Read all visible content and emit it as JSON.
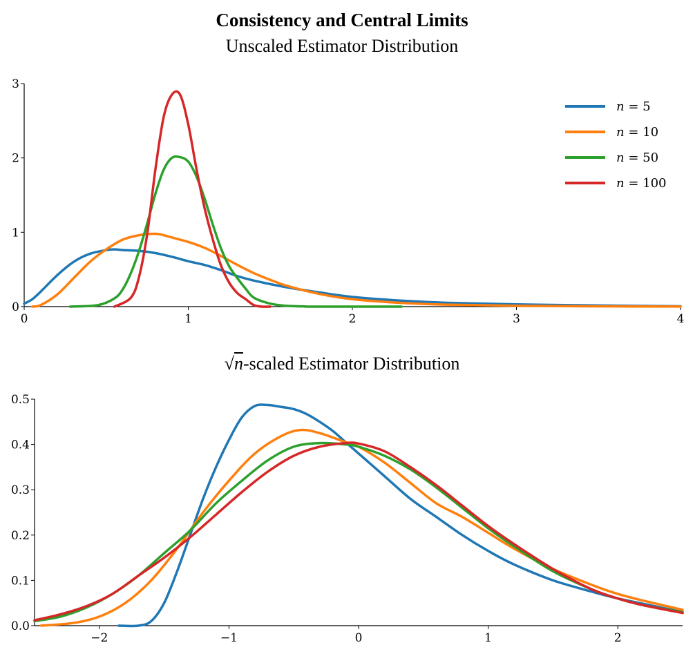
{
  "title": "Consistency and Central Limits",
  "colors": {
    "n5": "#1f77b4",
    "n10": "#ff7f0e",
    "n50": "#2ca02c",
    "n100": "#d62728"
  },
  "chart_data": [
    {
      "type": "line",
      "title": "Unscaled Estimator Distribution",
      "xlim": [
        0,
        4
      ],
      "ylim": [
        0,
        3
      ],
      "xticks": [
        0,
        1,
        2,
        3,
        4
      ],
      "yticks": [
        0,
        1,
        2,
        3
      ],
      "grid": false,
      "legend": "top-right",
      "series": [
        {
          "name": "n = 5",
          "color": "#1f77b4",
          "x": [
            0,
            0.05,
            0.1,
            0.2,
            0.3,
            0.4,
            0.5,
            0.55,
            0.6,
            0.7,
            0.8,
            0.9,
            1.0,
            1.1,
            1.2,
            1.3,
            1.4,
            1.6,
            1.8,
            2.0,
            2.3,
            2.6,
            3.0,
            3.5,
            4.0
          ],
          "y": [
            0.04,
            0.1,
            0.2,
            0.42,
            0.6,
            0.71,
            0.76,
            0.77,
            0.76,
            0.75,
            0.72,
            0.67,
            0.61,
            0.56,
            0.49,
            0.41,
            0.35,
            0.26,
            0.19,
            0.13,
            0.08,
            0.05,
            0.03,
            0.015,
            0.005
          ]
        },
        {
          "name": "n = 10",
          "color": "#ff7f0e",
          "x": [
            0.05,
            0.1,
            0.2,
            0.3,
            0.4,
            0.5,
            0.6,
            0.7,
            0.8,
            0.85,
            0.9,
            1.0,
            1.1,
            1.2,
            1.3,
            1.4,
            1.5,
            1.6,
            1.8,
            2.0,
            2.3,
            2.6,
            3.0,
            3.5,
            4.0
          ],
          "y": [
            0.0,
            0.02,
            0.16,
            0.38,
            0.6,
            0.77,
            0.9,
            0.96,
            0.98,
            0.96,
            0.93,
            0.87,
            0.79,
            0.68,
            0.56,
            0.45,
            0.36,
            0.28,
            0.17,
            0.1,
            0.05,
            0.025,
            0.012,
            0.004,
            0.001
          ]
        },
        {
          "name": "n = 50",
          "color": "#2ca02c",
          "x": [
            0.28,
            0.45,
            0.55,
            0.6,
            0.65,
            0.7,
            0.75,
            0.8,
            0.85,
            0.9,
            0.95,
            1.0,
            1.05,
            1.1,
            1.15,
            1.2,
            1.25,
            1.3,
            1.35,
            1.4,
            1.5,
            1.6,
            1.7,
            1.8,
            2.3
          ],
          "y": [
            0.0,
            0.02,
            0.11,
            0.23,
            0.45,
            0.75,
            1.12,
            1.52,
            1.84,
            2.0,
            2.01,
            1.95,
            1.75,
            1.45,
            1.1,
            0.78,
            0.54,
            0.38,
            0.24,
            0.12,
            0.04,
            0.01,
            0.003,
            0.0,
            0.0
          ]
        },
        {
          "name": "n = 100",
          "color": "#d62728",
          "x": [
            0.55,
            0.65,
            0.7,
            0.75,
            0.8,
            0.85,
            0.9,
            0.95,
            1.0,
            1.05,
            1.1,
            1.15,
            1.2,
            1.25,
            1.3,
            1.35,
            1.4,
            1.45,
            1.5
          ],
          "y": [
            0.0,
            0.12,
            0.4,
            0.98,
            1.85,
            2.55,
            2.85,
            2.85,
            2.45,
            1.85,
            1.32,
            0.9,
            0.55,
            0.32,
            0.18,
            0.1,
            0.02,
            0.0,
            0.0
          ]
        }
      ]
    },
    {
      "type": "line",
      "title_prefix": "n",
      "title": "-scaled Estimator Distribution",
      "xlim": [
        -2.5,
        2.5
      ],
      "ylim": [
        0,
        0.5
      ],
      "xticks": [
        -2,
        -1,
        0,
        1,
        2
      ],
      "xtick_labels": [
        "−2",
        "−1",
        "0",
        "1",
        "2"
      ],
      "yticks": [
        0,
        0.1,
        0.2,
        0.3,
        0.4,
        0.5
      ],
      "ytick_labels": [
        "0.0",
        "0.1",
        "0.2",
        "0.3",
        "0.4",
        "0.5"
      ],
      "grid": false,
      "legend": "none",
      "series": [
        {
          "name": "n = 5",
          "color": "#1f77b4",
          "x": [
            -1.85,
            -1.7,
            -1.6,
            -1.5,
            -1.4,
            -1.3,
            -1.2,
            -1.1,
            -1.0,
            -0.9,
            -0.8,
            -0.7,
            -0.6,
            -0.5,
            -0.4,
            -0.3,
            -0.2,
            -0.1,
            0.0,
            0.2,
            0.4,
            0.6,
            0.8,
            1.0,
            1.2,
            1.5,
            1.8,
            2.0,
            2.2,
            2.5
          ],
          "y": [
            0.0,
            0.0,
            0.01,
            0.05,
            0.12,
            0.2,
            0.28,
            0.35,
            0.41,
            0.46,
            0.485,
            0.487,
            0.483,
            0.478,
            0.467,
            0.45,
            0.43,
            0.405,
            0.38,
            0.33,
            0.28,
            0.24,
            0.2,
            0.165,
            0.135,
            0.1,
            0.075,
            0.06,
            0.048,
            0.03
          ]
        },
        {
          "name": "n = 10",
          "color": "#ff7f0e",
          "x": [
            -2.45,
            -2.2,
            -2.0,
            -1.8,
            -1.6,
            -1.4,
            -1.2,
            -1.0,
            -0.8,
            -0.6,
            -0.45,
            -0.3,
            -0.1,
            0.0,
            0.2,
            0.4,
            0.6,
            0.8,
            1.0,
            1.2,
            1.5,
            1.8,
            2.0,
            2.2,
            2.5
          ],
          "y": [
            0.0,
            0.006,
            0.02,
            0.05,
            0.1,
            0.17,
            0.25,
            0.32,
            0.38,
            0.418,
            0.432,
            0.425,
            0.405,
            0.395,
            0.36,
            0.315,
            0.27,
            0.24,
            0.205,
            0.17,
            0.125,
            0.09,
            0.07,
            0.055,
            0.035
          ]
        },
        {
          "name": "n = 50",
          "color": "#2ca02c",
          "x": [
            -2.5,
            -2.3,
            -2.1,
            -1.9,
            -1.7,
            -1.5,
            -1.3,
            -1.1,
            -0.9,
            -0.7,
            -0.5,
            -0.3,
            -0.1,
            0.0,
            0.2,
            0.4,
            0.6,
            0.8,
            1.0,
            1.2,
            1.5,
            1.8,
            2.0,
            2.2,
            2.5
          ],
          "y": [
            0.01,
            0.02,
            0.04,
            0.07,
            0.11,
            0.16,
            0.21,
            0.27,
            0.32,
            0.365,
            0.395,
            0.403,
            0.4,
            0.395,
            0.375,
            0.345,
            0.305,
            0.26,
            0.215,
            0.175,
            0.12,
            0.08,
            0.06,
            0.045,
            0.03
          ]
        },
        {
          "name": "n = 100",
          "color": "#d62728",
          "x": [
            -2.5,
            -2.3,
            -2.1,
            -1.9,
            -1.7,
            -1.5,
            -1.3,
            -1.1,
            -0.9,
            -0.7,
            -0.5,
            -0.3,
            -0.1,
            0.0,
            0.2,
            0.4,
            0.6,
            0.8,
            1.0,
            1.2,
            1.5,
            1.8,
            2.0,
            2.2,
            2.5
          ],
          "y": [
            0.012,
            0.025,
            0.043,
            0.07,
            0.11,
            0.15,
            0.195,
            0.245,
            0.295,
            0.34,
            0.375,
            0.395,
            0.403,
            0.402,
            0.385,
            0.35,
            0.31,
            0.265,
            0.22,
            0.18,
            0.125,
            0.08,
            0.06,
            0.045,
            0.028
          ]
        }
      ]
    }
  ]
}
